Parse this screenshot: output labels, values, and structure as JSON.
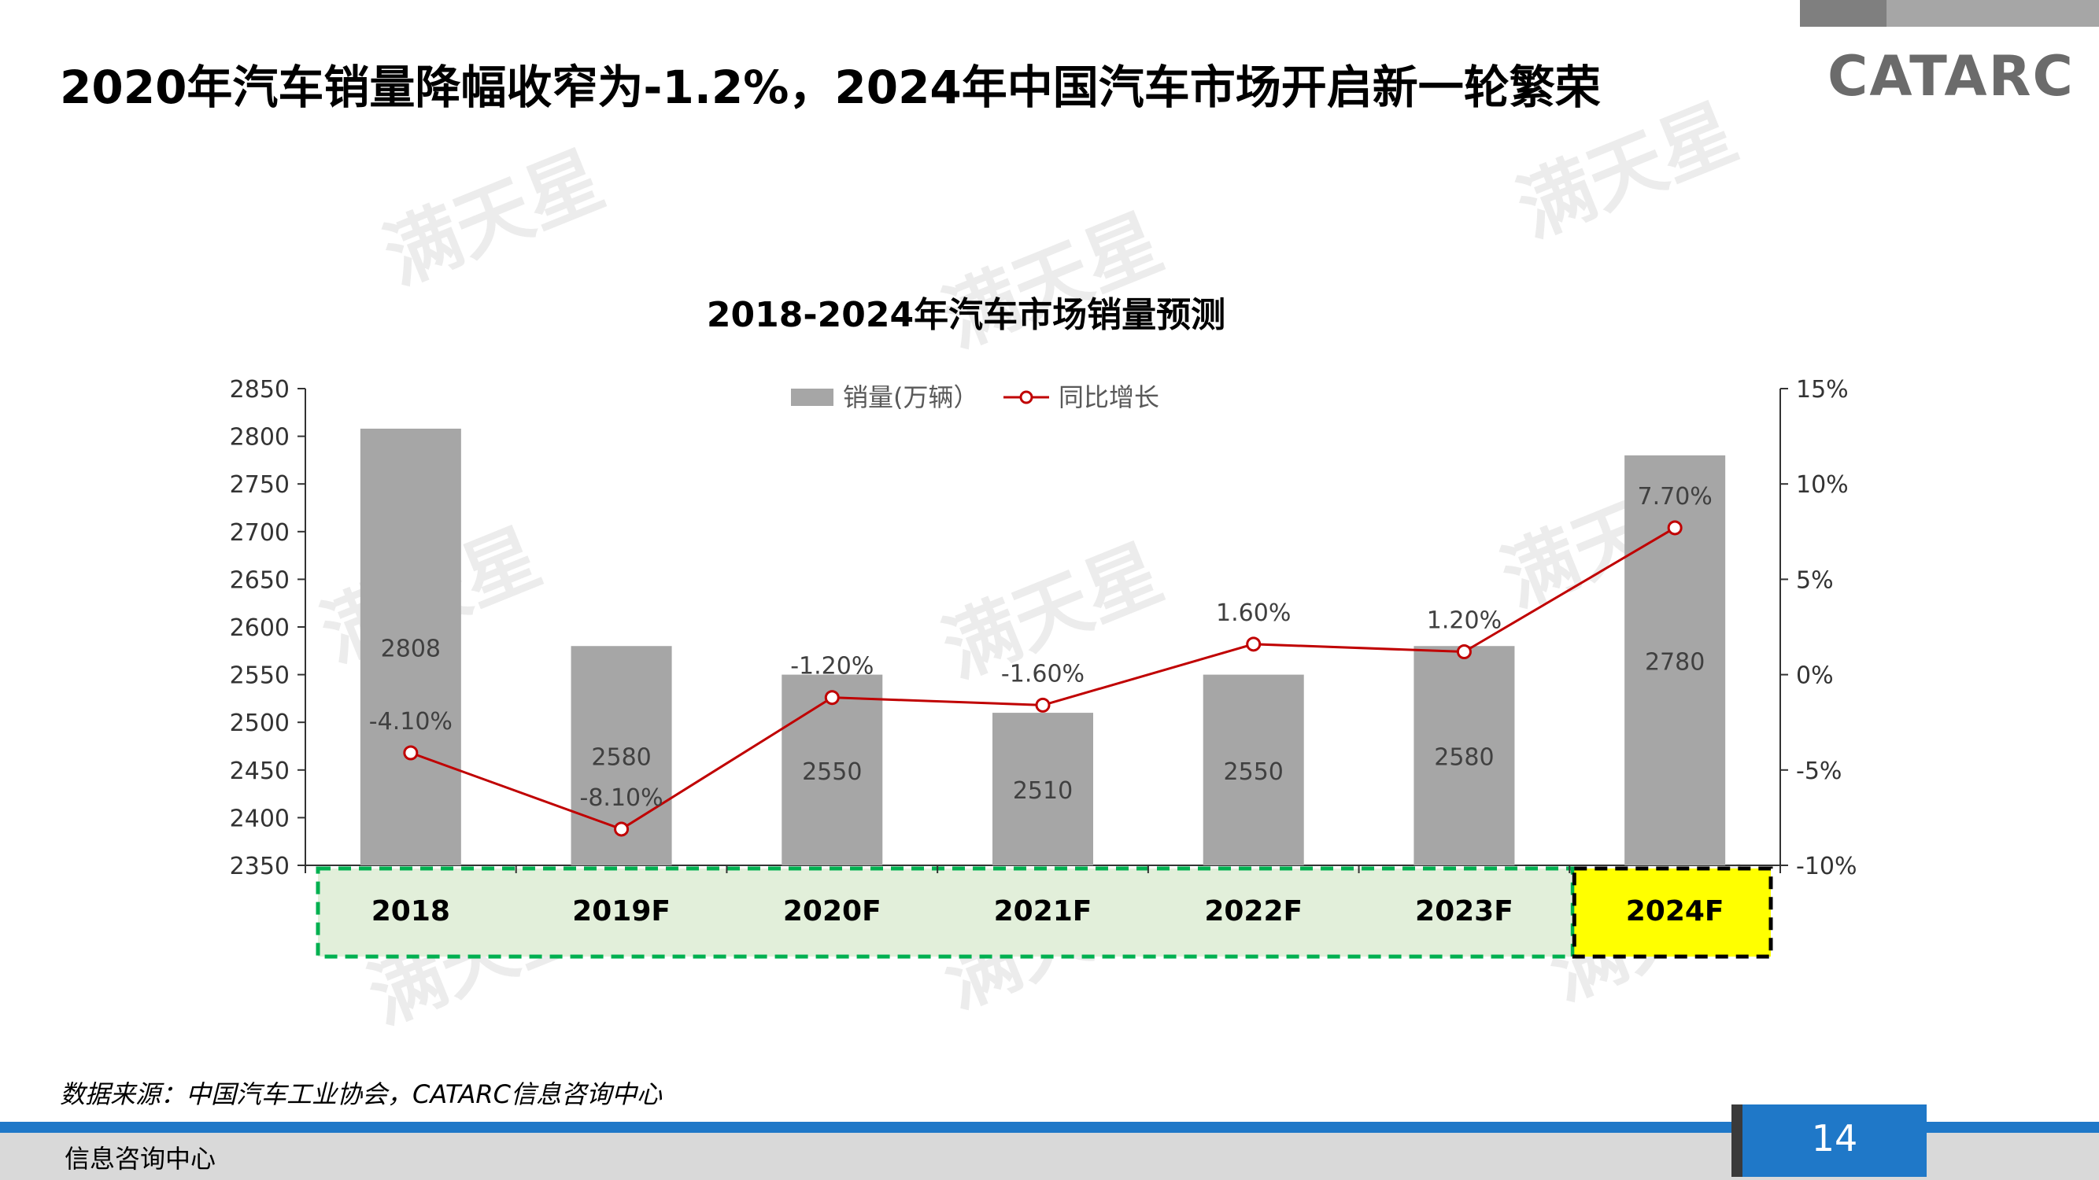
{
  "page": {
    "title": "2020年汽车销量降幅收窄为-1.2%，2024年中国汽车市场开启新一轮繁荣",
    "logo": "CATARC",
    "source": "数据来源：中国汽车工业协会，CATARC信息咨询中心",
    "footer_text": "信息咨询中心",
    "page_number": "14",
    "watermark": "满天星",
    "colors": {
      "bar": "#a6a6a6",
      "line": "#c00000",
      "footer_blue": "#1f78c8",
      "highlight": "#ffff00",
      "green_box": "#e2efda",
      "green_dash": "#00b050"
    }
  },
  "chart_data": {
    "type": "bar",
    "title": "2018-2024年汽车市场销量预测",
    "categories": [
      "2018",
      "2019F",
      "2020F",
      "2021F",
      "2022F",
      "2023F",
      "2024F"
    ],
    "series": [
      {
        "name": "销量(万辆）",
        "type": "bar",
        "axis": "left",
        "values": [
          2808,
          2580,
          2550,
          2510,
          2550,
          2580,
          2780
        ],
        "labels": [
          "2808",
          "2580",
          "2550",
          "2510",
          "2550",
          "2580",
          "2780"
        ]
      },
      {
        "name": "同比增长",
        "type": "line",
        "axis": "right",
        "values": [
          -4.1,
          -8.1,
          -1.2,
          -1.6,
          1.6,
          1.2,
          7.7
        ],
        "labels": [
          "-4.10%",
          "-8.10%",
          "-1.20%",
          "-1.60%",
          "1.60%",
          "1.20%",
          "7.70%"
        ]
      }
    ],
    "ylim_left": [
      2350,
      2850
    ],
    "yticks_left": [
      "2850",
      "2800",
      "2750",
      "2700",
      "2650",
      "2600",
      "2550",
      "2500",
      "2450",
      "2400",
      "2350"
    ],
    "ylim_right": [
      -10,
      15
    ],
    "yticks_right": [
      "15%",
      "10%",
      "5%",
      "0%",
      "-5%",
      "-10%"
    ],
    "legend": "top-center",
    "grid": false,
    "highlighted_category": "2024F"
  }
}
